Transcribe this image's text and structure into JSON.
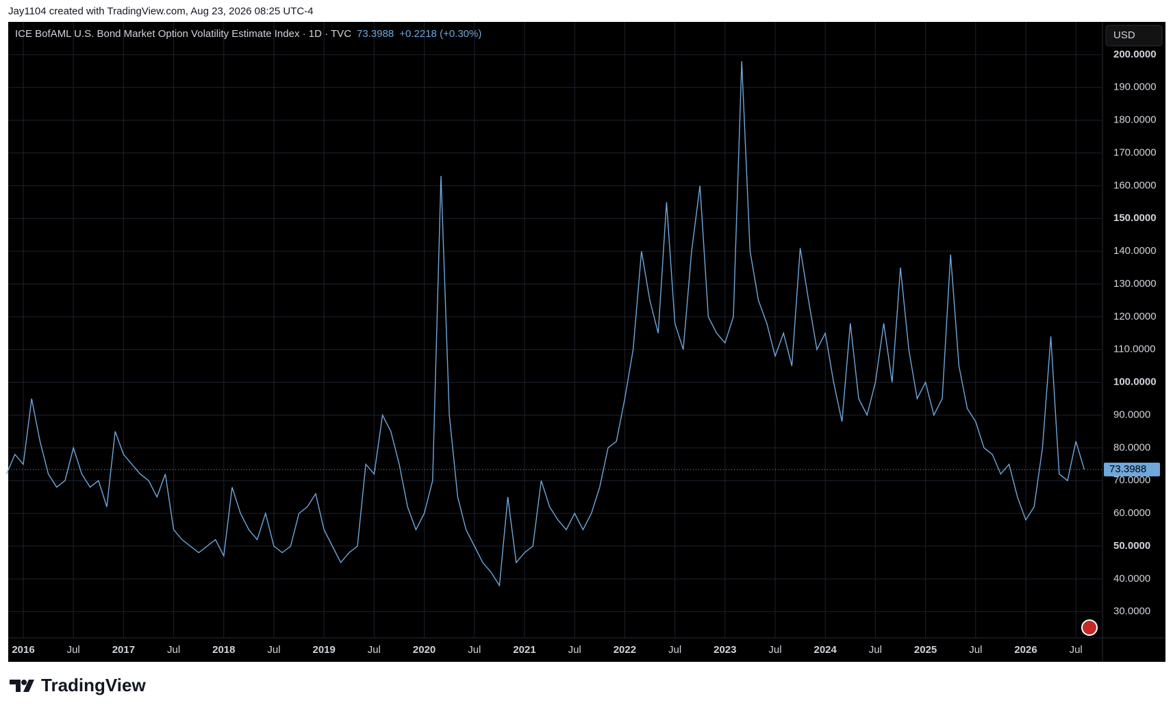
{
  "header": "Jay1104 created with TradingView.com, Aug 23, 2026 08:25 UTC-4",
  "footer": "TradingView",
  "chart_data": {
    "type": "line",
    "title": "ICE BofAML U.S. Bond Market Option Volatility Estimate Index · 1D · TVC",
    "last_value_label": "73.3988",
    "change_label": "+0.2218 (+0.30%)",
    "currency": "USD",
    "last_value": 73.3988,
    "x": [
      "2015-11",
      "2015-12",
      "2016-01",
      "2016-02",
      "2016-03",
      "2016-04",
      "2016-05",
      "2016-06",
      "2016-07",
      "2016-08",
      "2016-09",
      "2016-10",
      "2016-11",
      "2016-12",
      "2017-01",
      "2017-02",
      "2017-03",
      "2017-04",
      "2017-05",
      "2017-06",
      "2017-07",
      "2017-08",
      "2017-09",
      "2017-10",
      "2017-11",
      "2017-12",
      "2018-01",
      "2018-02",
      "2018-03",
      "2018-04",
      "2018-05",
      "2018-06",
      "2018-07",
      "2018-08",
      "2018-09",
      "2018-10",
      "2018-11",
      "2018-12",
      "2019-01",
      "2019-02",
      "2019-03",
      "2019-04",
      "2019-05",
      "2019-06",
      "2019-07",
      "2019-08",
      "2019-09",
      "2019-10",
      "2019-11",
      "2019-12",
      "2020-01",
      "2020-02",
      "2020-03",
      "2020-04",
      "2020-05",
      "2020-06",
      "2020-07",
      "2020-08",
      "2020-09",
      "2020-10",
      "2020-11",
      "2020-12",
      "2021-01",
      "2021-02",
      "2021-03",
      "2021-04",
      "2021-05",
      "2021-06",
      "2021-07",
      "2021-08",
      "2021-09",
      "2021-10",
      "2021-11",
      "2021-12",
      "2022-01",
      "2022-02",
      "2022-03",
      "2022-04",
      "2022-05",
      "2022-06",
      "2022-07",
      "2022-08",
      "2022-09",
      "2022-10",
      "2022-11",
      "2022-12",
      "2023-01",
      "2023-02",
      "2023-03",
      "2023-04",
      "2023-05",
      "2023-06",
      "2023-07",
      "2023-08",
      "2023-09",
      "2023-10",
      "2023-11",
      "2023-12",
      "2024-01",
      "2024-02",
      "2024-03",
      "2024-04",
      "2024-05",
      "2024-06",
      "2024-07",
      "2024-08",
      "2024-09",
      "2024-10",
      "2024-11",
      "2024-12",
      "2025-01",
      "2025-02",
      "2025-03",
      "2025-04",
      "2025-05",
      "2025-06",
      "2025-07",
      "2025-08",
      "2025-09",
      "2025-10",
      "2025-11",
      "2025-12",
      "2026-01",
      "2026-02",
      "2026-03",
      "2026-04",
      "2026-05",
      "2026-06",
      "2026-07",
      "2026-08"
    ],
    "series": [
      {
        "color": "#6fa8dc",
        "values": [
          72,
          78,
          75,
          95,
          82,
          72,
          68,
          70,
          80,
          72,
          68,
          70,
          62,
          85,
          78,
          75,
          72,
          70,
          65,
          72,
          55,
          52,
          50,
          48,
          50,
          52,
          47,
          68,
          60,
          55,
          52,
          60,
          50,
          48,
          50,
          60,
          62,
          66,
          55,
          50,
          45,
          48,
          50,
          75,
          72,
          90,
          85,
          75,
          62,
          55,
          60,
          70,
          163,
          90,
          65,
          55,
          50,
          45,
          42,
          38,
          65,
          45,
          48,
          50,
          70,
          62,
          58,
          55,
          60,
          55,
          60,
          68,
          80,
          82,
          95,
          110,
          140,
          125,
          115,
          155,
          118,
          110,
          140,
          160,
          120,
          115,
          112,
          120,
          198,
          140,
          125,
          118,
          108,
          115,
          105,
          141,
          125,
          110,
          115,
          100,
          88,
          118,
          95,
          90,
          100,
          118,
          100,
          135,
          110,
          95,
          100,
          90,
          95,
          139,
          105,
          92,
          88,
          80,
          78,
          72,
          75,
          65,
          58,
          62,
          80,
          114,
          72,
          70,
          82,
          73.3988
        ]
      }
    ],
    "ylim": [
      22,
      210
    ],
    "yticks": [
      {
        "value": 30,
        "label": "30.0000"
      },
      {
        "value": 40,
        "label": "40.0000"
      },
      {
        "value": 50,
        "label": "50.0000"
      },
      {
        "value": 60,
        "label": "60.0000"
      },
      {
        "value": 70,
        "label": "70.0000"
      },
      {
        "value": 80,
        "label": "80.0000"
      },
      {
        "value": 90,
        "label": "90.0000"
      },
      {
        "value": 100,
        "label": "100.0000"
      },
      {
        "value": 110,
        "label": "110.0000"
      },
      {
        "value": 120,
        "label": "120.0000"
      },
      {
        "value": 130,
        "label": "130.0000"
      },
      {
        "value": 140,
        "label": "140.0000"
      },
      {
        "value": 150,
        "label": "150.0000"
      },
      {
        "value": 160,
        "label": "160.0000"
      },
      {
        "value": 170,
        "label": "170.0000"
      },
      {
        "value": 180,
        "label": "180.0000"
      },
      {
        "value": 190,
        "label": "190.0000"
      },
      {
        "value": 200,
        "label": "200.0000"
      }
    ],
    "xticks": [
      {
        "value": "2016-01",
        "label": "2016"
      },
      {
        "value": "2016-07",
        "label": "Jul"
      },
      {
        "value": "2017-01",
        "label": "2017"
      },
      {
        "value": "2017-07",
        "label": "Jul"
      },
      {
        "value": "2018-01",
        "label": "2018"
      },
      {
        "value": "2018-07",
        "label": "Jul"
      },
      {
        "value": "2019-01",
        "label": "2019"
      },
      {
        "value": "2019-07",
        "label": "Jul"
      },
      {
        "value": "2020-01",
        "label": "2020"
      },
      {
        "value": "2020-07",
        "label": "Jul"
      },
      {
        "value": "2021-01",
        "label": "2021"
      },
      {
        "value": "2021-07",
        "label": "Jul"
      },
      {
        "value": "2022-01",
        "label": "2022"
      },
      {
        "value": "2022-07",
        "label": "Jul"
      },
      {
        "value": "2023-01",
        "label": "2023"
      },
      {
        "value": "2023-07",
        "label": "Jul"
      },
      {
        "value": "2024-01",
        "label": "2024"
      },
      {
        "value": "2024-07",
        "label": "Jul"
      },
      {
        "value": "2025-01",
        "label": "2025"
      },
      {
        "value": "2025-07",
        "label": "Jul"
      },
      {
        "value": "2026-01",
        "label": "2026"
      },
      {
        "value": "2026-07",
        "label": "Jul"
      }
    ],
    "grid": true
  }
}
